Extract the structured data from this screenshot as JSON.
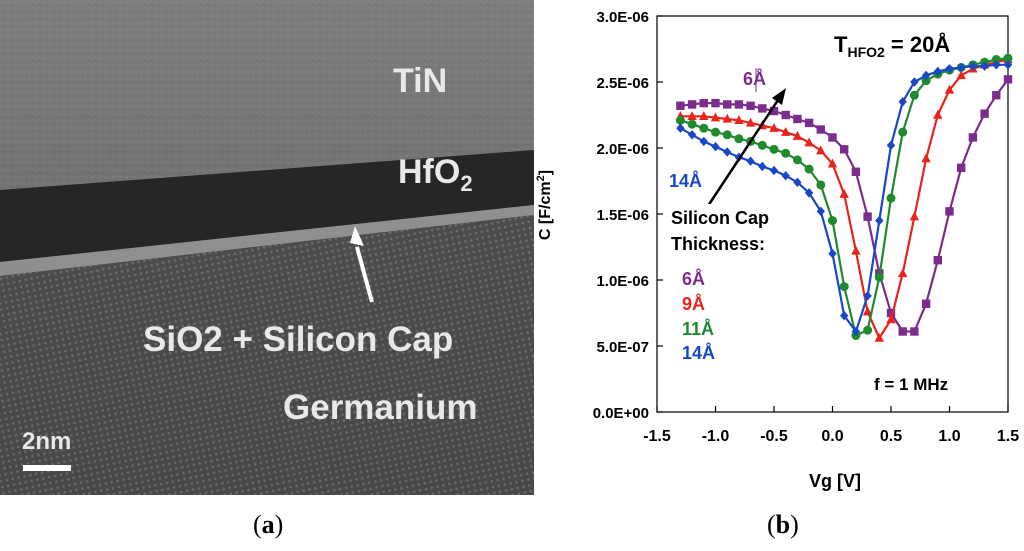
{
  "panel_a": {
    "labels": {
      "tin": "TiN",
      "hfo2_base": "HfO",
      "hfo2_sub": "2",
      "interface": "SiO2 + Silicon Cap",
      "substrate": "Germanium",
      "scale_bar": "2nm"
    },
    "caption_paren_open": "(",
    "caption_letter": "a",
    "caption_paren_close": ")"
  },
  "panel_b": {
    "caption_paren_open": "(",
    "caption_letter": "b",
    "caption_paren_close": ")"
  },
  "chart_data": {
    "type": "line",
    "title_main": "T",
    "title_sub": "HFO2",
    "title_value": " = 20Å",
    "ylabel_main": "C [F/cm",
    "ylabel_sup": "2",
    "ylabel_end": "]",
    "xlabel": "Vg [V]",
    "xlim": [
      -1.5,
      1.5
    ],
    "ylim": [
      0,
      3e-06
    ],
    "x_tick_labels": [
      "-1.5",
      "-1.0",
      "-0.5",
      "0.0",
      "0.5",
      "1.0",
      "1.5"
    ],
    "y_tick_labels": [
      "0.0E+00",
      "5.0E-07",
      "1.0E-06",
      "1.5E-06",
      "2.0E-06",
      "2.5E-06",
      "3.0E-06"
    ],
    "x_ticks": [
      -1.5,
      -1.0,
      -0.5,
      0.0,
      0.5,
      1.0,
      1.5
    ],
    "y_ticks": [
      0,
      5e-07,
      1e-06,
      1.5e-06,
      2e-06,
      2.5e-06,
      3e-06
    ],
    "annotation_legend_title": "Silicon Cap",
    "annotation_legend_title2": "Thickness:",
    "annotation_freq": "f = 1 MHz",
    "annotation_top": "6Å",
    "annotation_bottom": "14Å",
    "series": [
      {
        "name": "6Å",
        "color": "#7b2d8e",
        "marker": "square",
        "x": [
          -1.3,
          -1.2,
          -1.1,
          -1.0,
          -0.9,
          -0.8,
          -0.7,
          -0.6,
          -0.5,
          -0.4,
          -0.3,
          -0.2,
          -0.1,
          0.0,
          0.1,
          0.2,
          0.3,
          0.4,
          0.5,
          0.6,
          0.7,
          0.8,
          0.9,
          1.0,
          1.1,
          1.2,
          1.3,
          1.4,
          1.5
        ],
        "y": [
          2.32e-06,
          2.33e-06,
          2.34e-06,
          2.34e-06,
          2.33e-06,
          2.33e-06,
          2.32e-06,
          2.3e-06,
          2.28e-06,
          2.25e-06,
          2.22e-06,
          2.19e-06,
          2.14e-06,
          2.08e-06,
          1.99e-06,
          1.82e-06,
          1.48e-06,
          1.05e-06,
          7.5e-07,
          6.1e-07,
          6.1e-07,
          8.2e-07,
          1.15e-06,
          1.52e-06,
          1.85e-06,
          2.08e-06,
          2.26e-06,
          2.4e-06,
          2.52e-06
        ]
      },
      {
        "name": "9Å",
        "color": "#e8241c",
        "marker": "triangle",
        "x": [
          -1.3,
          -1.2,
          -1.1,
          -1.0,
          -0.9,
          -0.8,
          -0.7,
          -0.6,
          -0.5,
          -0.4,
          -0.3,
          -0.2,
          -0.1,
          0.0,
          0.1,
          0.2,
          0.3,
          0.4,
          0.5,
          0.6,
          0.7,
          0.8,
          0.9,
          1.0,
          1.1,
          1.2,
          1.3,
          1.4,
          1.5
        ],
        "y": [
          2.24e-06,
          2.24e-06,
          2.24e-06,
          2.23e-06,
          2.22e-06,
          2.21e-06,
          2.19e-06,
          2.17e-06,
          2.15e-06,
          2.12e-06,
          2.09e-06,
          2.04e-06,
          1.98e-06,
          1.88e-06,
          1.65e-06,
          1.22e-06,
          7.6e-07,
          5.6e-07,
          7e-07,
          1.05e-06,
          1.48e-06,
          1.92e-06,
          2.25e-06,
          2.44e-06,
          2.55e-06,
          2.6e-06,
          2.63e-06,
          2.65e-06,
          2.67e-06
        ]
      },
      {
        "name": "11Å",
        "color": "#1f8a2e",
        "marker": "circle",
        "x": [
          -1.3,
          -1.2,
          -1.1,
          -1.0,
          -0.9,
          -0.8,
          -0.7,
          -0.6,
          -0.5,
          -0.4,
          -0.3,
          -0.2,
          -0.1,
          0.0,
          0.1,
          0.2,
          0.3,
          0.4,
          0.5,
          0.6,
          0.7,
          0.8,
          0.9,
          1.0,
          1.1,
          1.2,
          1.3,
          1.4,
          1.5
        ],
        "y": [
          2.21e-06,
          2.18e-06,
          2.15e-06,
          2.12e-06,
          2.1e-06,
          2.07e-06,
          2.05e-06,
          2.02e-06,
          1.99e-06,
          1.96e-06,
          1.91e-06,
          1.84e-06,
          1.72e-06,
          1.45e-06,
          9.5e-07,
          5.8e-07,
          6.2e-07,
          1.02e-06,
          1.62e-06,
          2.12e-06,
          2.4e-06,
          2.51e-06,
          2.56e-06,
          2.59e-06,
          2.61e-06,
          2.63e-06,
          2.65e-06,
          2.67e-06,
          2.68e-06
        ]
      },
      {
        "name": "14Å",
        "color": "#1a47c8",
        "marker": "diamond",
        "x": [
          -1.3,
          -1.2,
          -1.1,
          -1.0,
          -0.9,
          -0.8,
          -0.7,
          -0.6,
          -0.5,
          -0.4,
          -0.3,
          -0.2,
          -0.1,
          0.0,
          0.1,
          0.2,
          0.3,
          0.4,
          0.5,
          0.6,
          0.7,
          0.8,
          0.9,
          1.0,
          1.1,
          1.2,
          1.3,
          1.4,
          1.5
        ],
        "y": [
          2.15e-06,
          2.1e-06,
          2.05e-06,
          2.01e-06,
          1.97e-06,
          1.93e-06,
          1.9e-06,
          1.86e-06,
          1.83e-06,
          1.79e-06,
          1.74e-06,
          1.66e-06,
          1.52e-06,
          1.2e-06,
          7.3e-07,
          6.1e-07,
          8.8e-07,
          1.45e-06,
          2.02e-06,
          2.35e-06,
          2.5e-06,
          2.55e-06,
          2.58e-06,
          2.6e-06,
          2.61e-06,
          2.62e-06,
          2.62e-06,
          2.63e-06,
          2.63e-06
        ]
      }
    ]
  }
}
